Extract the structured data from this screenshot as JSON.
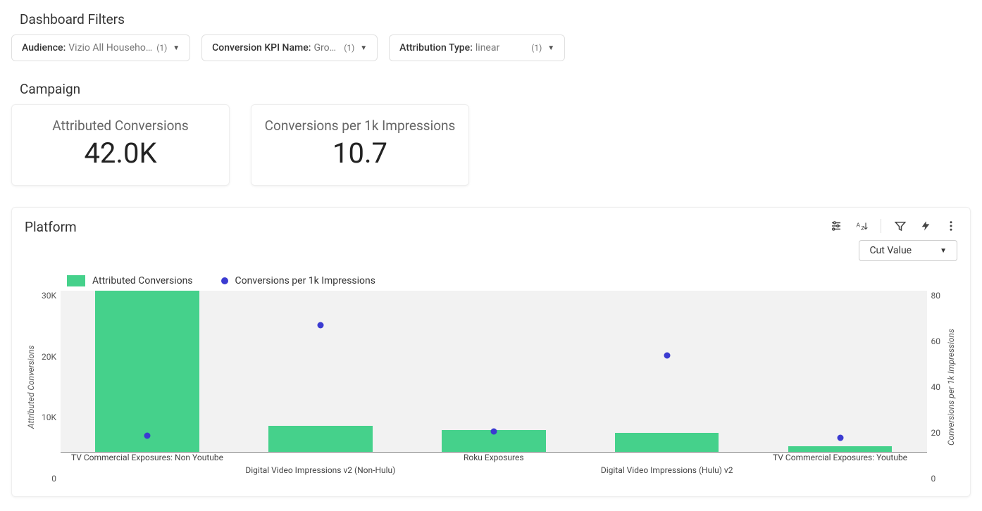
{
  "filters": {
    "title": "Dashboard Filters",
    "items": [
      {
        "label": "Audience",
        "value": "Vizio All Househo…",
        "count": "(1)"
      },
      {
        "label": "Conversion KPI Name",
        "value": "Gro…",
        "count": "(1)"
      },
      {
        "label": "Attribution Type",
        "value": "linear",
        "count": "(1)"
      }
    ]
  },
  "campaign": {
    "title": "Campaign",
    "kpis": [
      {
        "title": "Attributed Conversions",
        "value": "42.0K"
      },
      {
        "title": "Conversions per 1k Impressions",
        "value": "10.7"
      }
    ]
  },
  "platform": {
    "title": "Platform",
    "dropdown": "Cut Value",
    "legend": {
      "bar": "Attributed Conversions",
      "dot": "Conversions per 1k Impressions"
    },
    "chart": {
      "type": "bar+scatter",
      "bar_color": "#45d18b",
      "dot_color": "#3b3bd1",
      "plot_bg": "#f2f2f2",
      "y_left": {
        "label": "Attributed Conversions",
        "min": 0,
        "max": 30,
        "ticks": [
          "30K",
          "20K",
          "10K",
          "0"
        ]
      },
      "y_right": {
        "label": "Conversions per 1k Impressions",
        "min": 0,
        "max": 80,
        "ticks": [
          "80",
          "60",
          "40",
          "20",
          "0"
        ]
      },
      "categories": [
        "TV Commercial Exposures: Non Youtube",
        "Digital Video Impressions v2 (Non-Hulu)",
        "Roku Exposures",
        "Digital Video Impressions (Hulu) v2",
        "TV Commercial Exposures: Youtube"
      ],
      "bar_values_k": [
        30,
        4.8,
        4.0,
        3.6,
        1.0
      ],
      "dot_values": [
        8,
        63,
        10,
        48,
        7
      ],
      "bar_width_pct": 12
    }
  }
}
